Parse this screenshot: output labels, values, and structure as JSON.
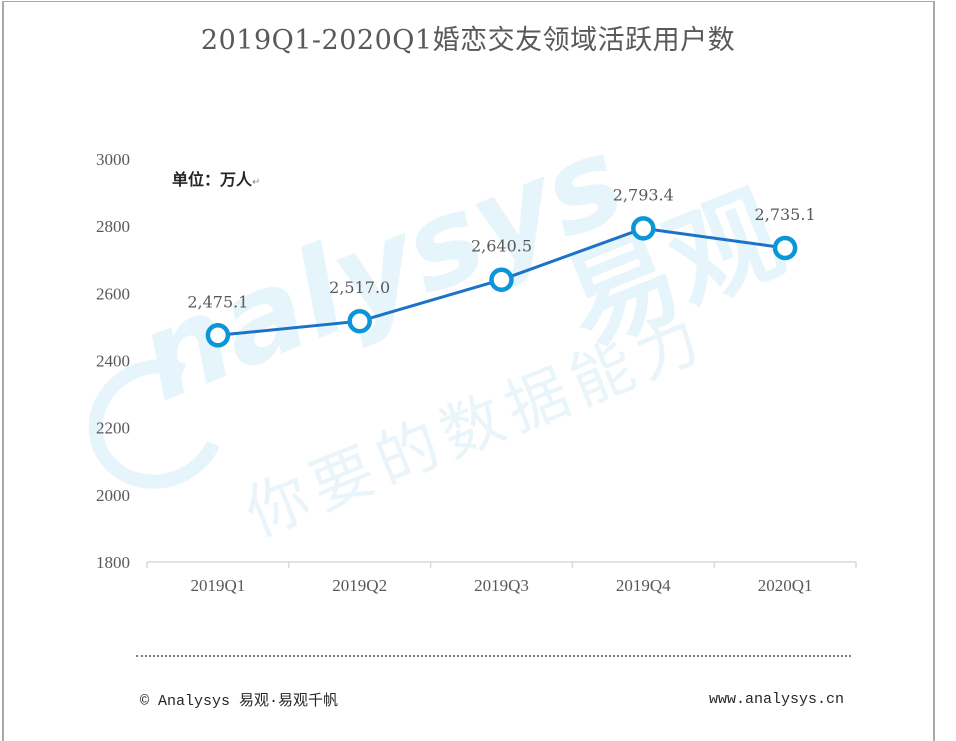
{
  "title": "2019Q1-2020Q1婚恋交友领域活跃用户数",
  "unit_label": "单位：万人",
  "unit_return_mark": "↵",
  "watermark": {
    "brand_en": "nalysys",
    "brand_cn": "易观",
    "slogan": "你要的数据能力"
  },
  "footer": {
    "left": "© Analysys 易观·易观千帆",
    "right": "www.analysys.cn"
  },
  "colors": {
    "line": "#1a73c8",
    "marker_stroke": "#0b96d9",
    "text": "#595959",
    "axis": "#d9d9d9"
  },
  "chart_data": {
    "type": "line",
    "title": "2019Q1-2020Q1婚恋交友领域活跃用户数",
    "xlabel": "",
    "ylabel": "单位：万人",
    "categories": [
      "2019Q1",
      "2019Q2",
      "2019Q3",
      "2019Q4",
      "2020Q1"
    ],
    "series": [
      {
        "name": "活跃用户数",
        "values": [
          2475.1,
          2517.0,
          2640.5,
          2793.4,
          2735.1
        ]
      }
    ],
    "data_labels": [
      "2,475.1",
      "2,517.0",
      "2,640.5",
      "2,793.4",
      "2,735.1"
    ],
    "yticks": [
      1800,
      2000,
      2200,
      2400,
      2600,
      2800,
      3000
    ],
    "ylim": [
      1800,
      3000
    ],
    "grid": false,
    "legend": "none"
  }
}
